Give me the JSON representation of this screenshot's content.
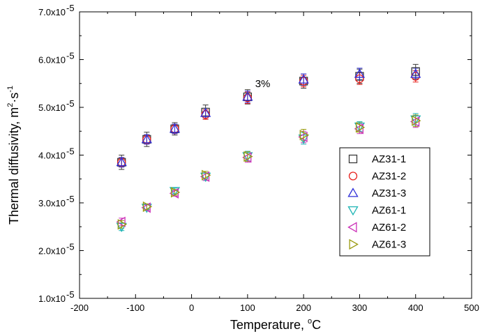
{
  "chart_data": {
    "type": "scatter",
    "xlabel": "Temperature, ",
    "xlabel_unit": "C",
    "xlabel_degree": "o",
    "ylabel": "Thermal diffusivity, m",
    "ylabel_sup": "2",
    "ylabel_mid": "·s",
    "ylabel_sup2": "-1",
    "xlim": [
      -200,
      500
    ],
    "ylim": [
      1e-05,
      7e-05
    ],
    "x_ticks": [
      -200,
      -100,
      0,
      100,
      200,
      300,
      400,
      500
    ],
    "x_tick_labels": [
      "-200",
      "-100",
      "0",
      "100",
      "200",
      "300",
      "400",
      "500"
    ],
    "y_ticks": [
      1e-05,
      2e-05,
      3e-05,
      4e-05,
      5e-05,
      6e-05,
      7e-05
    ],
    "y_tick_mantissas": [
      "1.0x10",
      "2.0x10",
      "3.0x10",
      "4.0x10",
      "5.0x10",
      "6.0x10",
      "7.0x10"
    ],
    "y_tick_exponent": "-5",
    "grid": false,
    "legend_position": "lower-right",
    "annotation": {
      "text": "3%",
      "x": 127,
      "y": 5.42e-05
    },
    "series": [
      {
        "name": "AZ31-1",
        "marker": "square",
        "color": "#3a3a3a",
        "x": [
          -125,
          -80,
          -30,
          25,
          100,
          200,
          300,
          400
        ],
        "y": [
          3.85e-05,
          4.33e-05,
          4.55e-05,
          4.9e-05,
          5.22e-05,
          5.55e-05,
          5.65e-05,
          5.75e-05
        ],
        "err": [
          1.5e-06,
          1.5e-06,
          1.3e-06,
          1.5e-06,
          1.5e-06,
          1.5e-06,
          1.5e-06,
          1.5e-06
        ]
      },
      {
        "name": "AZ31-2",
        "marker": "circle",
        "color": "#e8201c",
        "x": [
          -125,
          -80,
          -30,
          25,
          100,
          200,
          300,
          400
        ],
        "y": [
          3.85e-05,
          4.33e-05,
          4.55e-05,
          4.85e-05,
          5.2e-05,
          5.55e-05,
          5.6e-05,
          5.65e-05
        ],
        "err": [
          1e-06,
          1e-06,
          1e-06,
          1e-06,
          1.2e-06,
          1.2e-06,
          1.2e-06,
          1.2e-06
        ]
      },
      {
        "name": "AZ31-3",
        "marker": "triangle-up",
        "color": "#2f2fd8",
        "x": [
          -125,
          -80,
          -30,
          25,
          100,
          200,
          300,
          400
        ],
        "y": [
          3.85e-05,
          4.33e-05,
          4.55e-05,
          4.88e-05,
          5.22e-05,
          5.58e-05,
          5.7e-05,
          5.7e-05
        ],
        "err": [
          1e-06,
          1e-06,
          1e-06,
          1e-06,
          1.2e-06,
          1.2e-06,
          1.2e-06,
          1.2e-06
        ]
      },
      {
        "name": "AZ61-1",
        "marker": "triangle-down",
        "color": "#1fb5b5",
        "x": [
          -125,
          -80,
          -30,
          25,
          100,
          200,
          300,
          400
        ],
        "y": [
          2.5e-05,
          2.9e-05,
          3.25e-05,
          3.55e-05,
          3.98e-05,
          4.35e-05,
          4.6e-05,
          4.75e-05
        ],
        "err": [
          8e-07,
          6e-07,
          6e-07,
          8e-07,
          1e-06,
          1.2e-06,
          1e-06,
          1.2e-06
        ]
      },
      {
        "name": "AZ61-2",
        "marker": "triangle-left",
        "color": "#cc30b8",
        "x": [
          -125,
          -80,
          -30,
          25,
          100,
          200,
          300,
          400
        ],
        "y": [
          2.6e-05,
          2.9e-05,
          3.2e-05,
          3.55e-05,
          3.95e-05,
          4.38e-05,
          4.55e-05,
          4.7e-05
        ],
        "err": [
          8e-07,
          6e-07,
          6e-07,
          8e-07,
          1e-06,
          1.2e-06,
          1e-06,
          1.2e-06
        ]
      },
      {
        "name": "AZ61-3",
        "marker": "triangle-right",
        "color": "#9a9a10",
        "x": [
          -125,
          -80,
          -30,
          25,
          100,
          200,
          300,
          400
        ],
        "y": [
          2.55e-05,
          2.92e-05,
          3.22e-05,
          3.58e-05,
          3.97e-05,
          4.42e-05,
          4.58e-05,
          4.72e-05
        ],
        "err": [
          8e-07,
          6e-07,
          6e-07,
          8e-07,
          1e-06,
          1.2e-06,
          1e-06,
          1.2e-06
        ]
      }
    ]
  }
}
